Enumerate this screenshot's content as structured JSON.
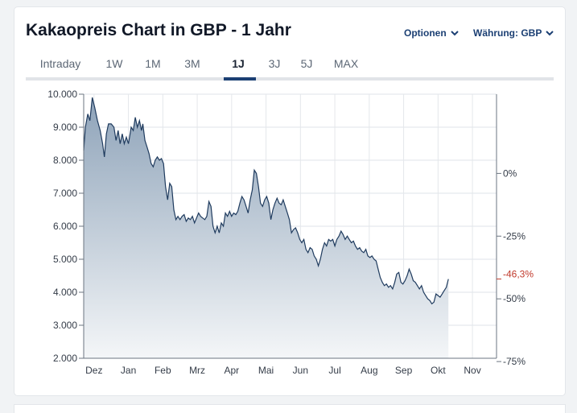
{
  "title": "Kakaopreis Chart in GBP - 1 Jahr",
  "controls": {
    "options_label": "Optionen",
    "currency_label": "Währung: GBP"
  },
  "tabs": [
    {
      "label": "Intraday",
      "active": false
    },
    {
      "label": "1W",
      "active": false
    },
    {
      "label": "1M",
      "active": false
    },
    {
      "label": "3M",
      "active": false
    },
    {
      "label": "1J",
      "active": true
    },
    {
      "label": "3J",
      "active": false
    },
    {
      "label": "5J",
      "active": false
    },
    {
      "label": "MAX",
      "active": false
    }
  ],
  "colors": {
    "line": "#1f3b5e",
    "area_top": "#8ea3b9",
    "area_bottom": "#f4f6f8",
    "accent": "#1b3f73",
    "current_change": "#c0392b"
  },
  "chart_data": {
    "type": "area",
    "ylim": [
      2000,
      10000
    ],
    "y_ticks": [
      {
        "value": 10000,
        "label": "10.000"
      },
      {
        "value": 9000,
        "label": "9.000"
      },
      {
        "value": 8000,
        "label": "8.000"
      },
      {
        "value": 7000,
        "label": "7.000"
      },
      {
        "value": 6000,
        "label": "6.000"
      },
      {
        "value": 5000,
        "label": "5.000"
      },
      {
        "value": 4000,
        "label": "4.000"
      },
      {
        "value": 3000,
        "label": "3.000"
      },
      {
        "value": 2000,
        "label": "2.000"
      }
    ],
    "x_ticks": [
      "Dez",
      "Jan",
      "Feb",
      "Mrz",
      "Apr",
      "Mai",
      "Jun",
      "Jul",
      "Aug",
      "Sep",
      "Okt",
      "Nov"
    ],
    "x_range": [
      -0.3,
      11.7
    ],
    "right_axis": {
      "base_value": 7600,
      "ticks": [
        {
          "pct": 0,
          "label": "0%"
        },
        {
          "pct": -25,
          "label": "-25%"
        },
        {
          "pct": -50,
          "label": "-50%"
        },
        {
          "pct": -75,
          "label": "-75%"
        }
      ],
      "current_label": "-46,3%",
      "current_value": 4400
    },
    "series": [
      {
        "points": [
          [
            -0.3,
            8300
          ],
          [
            -0.25,
            9000
          ],
          [
            -0.18,
            9400
          ],
          [
            -0.12,
            9200
          ],
          [
            -0.05,
            9900
          ],
          [
            0.02,
            9600
          ],
          [
            0.1,
            9200
          ],
          [
            0.18,
            8900
          ],
          [
            0.25,
            8500
          ],
          [
            0.3,
            8100
          ],
          [
            0.36,
            8800
          ],
          [
            0.42,
            9100
          ],
          [
            0.5,
            9100
          ],
          [
            0.58,
            9000
          ],
          [
            0.64,
            8600
          ],
          [
            0.7,
            8900
          ],
          [
            0.76,
            8500
          ],
          [
            0.82,
            8800
          ],
          [
            0.88,
            8500
          ],
          [
            0.94,
            8700
          ],
          [
            1.0,
            8500
          ],
          [
            1.08,
            9000
          ],
          [
            1.14,
            8900
          ],
          [
            1.2,
            9300
          ],
          [
            1.26,
            9000
          ],
          [
            1.32,
            9200
          ],
          [
            1.38,
            8900
          ],
          [
            1.42,
            9100
          ],
          [
            1.48,
            8600
          ],
          [
            1.54,
            8400
          ],
          [
            1.6,
            8200
          ],
          [
            1.66,
            7900
          ],
          [
            1.72,
            7800
          ],
          [
            1.78,
            8000
          ],
          [
            1.84,
            8100
          ],
          [
            1.9,
            8000
          ],
          [
            1.96,
            8050
          ],
          [
            2.02,
            7900
          ],
          [
            2.08,
            7200
          ],
          [
            2.14,
            6800
          ],
          [
            2.2,
            7300
          ],
          [
            2.26,
            7200
          ],
          [
            2.32,
            6500
          ],
          [
            2.38,
            6200
          ],
          [
            2.44,
            6300
          ],
          [
            2.5,
            6200
          ],
          [
            2.56,
            6300
          ],
          [
            2.62,
            6350
          ],
          [
            2.68,
            6150
          ],
          [
            2.74,
            6250
          ],
          [
            2.8,
            6200
          ],
          [
            2.86,
            6300
          ],
          [
            2.92,
            6100
          ],
          [
            2.98,
            6250
          ],
          [
            3.04,
            6400
          ],
          [
            3.1,
            6300
          ],
          [
            3.16,
            6250
          ],
          [
            3.22,
            6200
          ],
          [
            3.28,
            6300
          ],
          [
            3.34,
            6750
          ],
          [
            3.4,
            6600
          ],
          [
            3.46,
            6000
          ],
          [
            3.52,
            5800
          ],
          [
            3.58,
            6000
          ],
          [
            3.64,
            5800
          ],
          [
            3.7,
            6100
          ],
          [
            3.76,
            6000
          ],
          [
            3.82,
            6400
          ],
          [
            3.88,
            6300
          ],
          [
            3.94,
            6450
          ],
          [
            4.0,
            6300
          ],
          [
            4.06,
            6400
          ],
          [
            4.12,
            6350
          ],
          [
            4.18,
            6450
          ],
          [
            4.24,
            6700
          ],
          [
            4.3,
            6900
          ],
          [
            4.36,
            6800
          ],
          [
            4.42,
            6600
          ],
          [
            4.48,
            6400
          ],
          [
            4.54,
            6800
          ],
          [
            4.6,
            7100
          ],
          [
            4.66,
            7700
          ],
          [
            4.72,
            7600
          ],
          [
            4.78,
            7200
          ],
          [
            4.84,
            6700
          ],
          [
            4.9,
            6600
          ],
          [
            4.96,
            6800
          ],
          [
            5.02,
            6900
          ],
          [
            5.08,
            6700
          ],
          [
            5.14,
            6200
          ],
          [
            5.2,
            6500
          ],
          [
            5.26,
            6700
          ],
          [
            5.32,
            6850
          ],
          [
            5.38,
            6700
          ],
          [
            5.44,
            6650
          ],
          [
            5.5,
            6800
          ],
          [
            5.56,
            6600
          ],
          [
            5.62,
            6400
          ],
          [
            5.68,
            6200
          ],
          [
            5.74,
            5800
          ],
          [
            5.8,
            5900
          ],
          [
            5.86,
            5950
          ],
          [
            5.92,
            5800
          ],
          [
            5.98,
            5600
          ],
          [
            6.04,
            5500
          ],
          [
            6.1,
            5600
          ],
          [
            6.16,
            5300
          ],
          [
            6.22,
            5200
          ],
          [
            6.28,
            5350
          ],
          [
            6.34,
            5300
          ],
          [
            6.4,
            5100
          ],
          [
            6.46,
            5000
          ],
          [
            6.52,
            4800
          ],
          [
            6.58,
            5000
          ],
          [
            6.64,
            5300
          ],
          [
            6.7,
            5500
          ],
          [
            6.76,
            5400
          ],
          [
            6.82,
            5600
          ],
          [
            6.88,
            5550
          ],
          [
            6.94,
            5600
          ],
          [
            7.0,
            5400
          ],
          [
            7.06,
            5600
          ],
          [
            7.12,
            5700
          ],
          [
            7.18,
            5850
          ],
          [
            7.24,
            5750
          ],
          [
            7.3,
            5600
          ],
          [
            7.36,
            5700
          ],
          [
            7.42,
            5600
          ],
          [
            7.48,
            5500
          ],
          [
            7.54,
            5550
          ],
          [
            7.6,
            5400
          ],
          [
            7.66,
            5300
          ],
          [
            7.72,
            5350
          ],
          [
            7.78,
            5250
          ],
          [
            7.84,
            5200
          ],
          [
            7.9,
            5300
          ],
          [
            7.96,
            5100
          ],
          [
            8.02,
            5050
          ],
          [
            8.08,
            5100
          ],
          [
            8.14,
            5000
          ],
          [
            8.2,
            4950
          ],
          [
            8.26,
            4700
          ],
          [
            8.32,
            4450
          ],
          [
            8.38,
            4300
          ],
          [
            8.44,
            4200
          ],
          [
            8.5,
            4250
          ],
          [
            8.56,
            4150
          ],
          [
            8.62,
            4200
          ],
          [
            8.68,
            4100
          ],
          [
            8.74,
            4300
          ],
          [
            8.8,
            4550
          ],
          [
            8.86,
            4600
          ],
          [
            8.92,
            4300
          ],
          [
            8.98,
            4250
          ],
          [
            9.04,
            4350
          ],
          [
            9.1,
            4500
          ],
          [
            9.16,
            4700
          ],
          [
            9.22,
            4550
          ],
          [
            9.28,
            4350
          ],
          [
            9.34,
            4300
          ],
          [
            9.4,
            4200
          ],
          [
            9.46,
            4100
          ],
          [
            9.52,
            4200
          ],
          [
            9.58,
            4000
          ],
          [
            9.64,
            3900
          ],
          [
            9.7,
            3800
          ],
          [
            9.76,
            3750
          ],
          [
            9.82,
            3650
          ],
          [
            9.88,
            3700
          ],
          [
            9.94,
            3950
          ],
          [
            10.0,
            3900
          ],
          [
            10.06,
            3850
          ],
          [
            10.12,
            3950
          ],
          [
            10.18,
            4050
          ],
          [
            10.24,
            4150
          ],
          [
            10.3,
            4400
          ]
        ]
      }
    ]
  }
}
